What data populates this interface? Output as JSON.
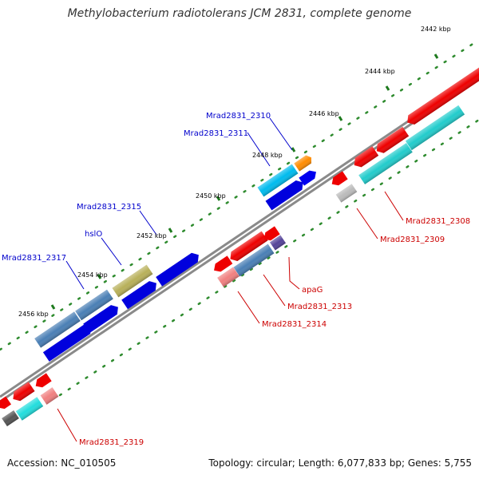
{
  "title": "Methylobacterium radiotolerans JCM 2831, complete genome",
  "accession": "Accession: NC_010505",
  "summary": "Topology: circular; Length: 6,077,833 bp; Genes: 5,755",
  "colors": {
    "forward_label": "#0000cc",
    "reverse_label": "#cc0000",
    "backbone": "#9a9a9a",
    "tick_green": "#2e8b2e"
  },
  "ruler": [
    {
      "label": "2442 kbp"
    },
    {
      "label": "2444 kbp"
    },
    {
      "label": "2446 kbp"
    },
    {
      "label": "2448 kbp"
    },
    {
      "label": "2450 kbp"
    },
    {
      "label": "2452 kbp"
    },
    {
      "label": "2454 kbp"
    },
    {
      "label": "2456 kbp"
    }
  ],
  "forward_labels": [
    {
      "text": "Mrad2831_2310"
    },
    {
      "text": "Mrad2831_2311"
    },
    {
      "text": "Mrad2831_2315"
    },
    {
      "text": "hslO"
    },
    {
      "text": "Mrad2831_2317"
    }
  ],
  "reverse_labels": [
    {
      "text": "Mrad2831_2308"
    },
    {
      "text": "Mrad2831_2309"
    },
    {
      "text": "apaG"
    },
    {
      "text": "Mrad2831_2313"
    },
    {
      "text": "Mrad2831_2314"
    },
    {
      "text": "Mrad2831_2319"
    }
  ]
}
